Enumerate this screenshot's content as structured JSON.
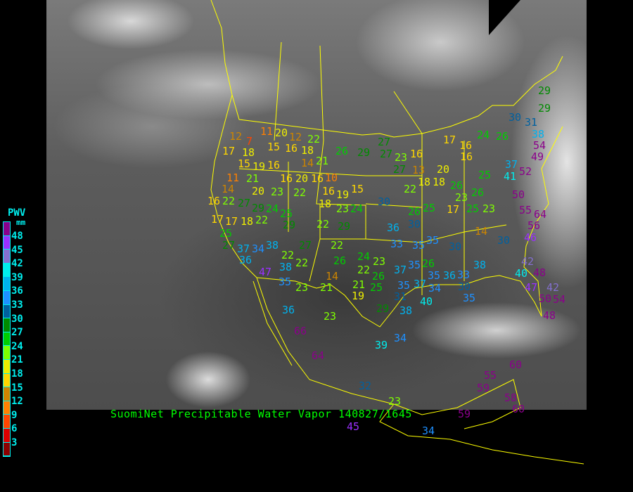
{
  "caption": "SuomiNet Precipitable Water Vapor 140827/1645",
  "legend": {
    "title": "PWV",
    "unit": "mm",
    "ticks": [
      "48",
      "45",
      "42",
      "39",
      "36",
      "33",
      "30",
      "27",
      "24",
      "21",
      "18",
      "15",
      "12",
      "9",
      "6",
      "3"
    ],
    "colors": [
      "#8b008b",
      "#9b30ff",
      "#8470d0",
      "#00eeee",
      "#00b2ee",
      "#1e90ff",
      "#00609f",
      "#008b00",
      "#00cd00",
      "#7fff00",
      "#eeee00",
      "#ffd700",
      "#cd8500",
      "#ff8000",
      "#ff4500",
      "#dd0000",
      "#8b0000"
    ]
  },
  "stations": [
    11,
    20,
    12,
    22,
    12,
    7,
    17,
    18,
    15,
    16,
    18,
    21,
    26,
    29,
    27,
    27,
    23,
    16,
    17,
    16,
    16,
    26,
    24,
    30,
    31,
    29,
    29,
    38,
    54,
    49,
    52,
    37,
    41,
    50,
    55,
    64,
    56,
    46,
    42,
    40,
    48,
    42,
    47,
    50,
    54,
    48,
    15,
    19,
    16,
    16,
    20,
    16,
    14,
    10,
    16,
    11,
    21,
    14,
    16,
    22,
    20,
    23,
    22,
    18,
    19,
    15,
    23,
    24,
    27,
    29,
    24,
    25,
    17,
    17,
    18,
    22,
    29,
    25,
    27,
    22,
    29,
    30,
    36,
    33,
    35,
    35,
    22,
    18,
    18,
    13,
    20,
    27,
    26,
    23,
    26,
    25,
    25,
    23,
    17,
    25,
    26,
    30,
    14,
    30,
    30,
    37,
    36,
    34,
    38,
    22,
    38,
    22,
    27,
    22,
    26,
    24,
    23,
    22,
    47,
    35,
    23,
    21,
    14,
    19,
    21,
    25,
    26,
    37,
    35,
    35,
    37,
    35,
    26,
    36,
    33,
    38,
    30,
    35,
    29,
    38,
    40,
    34,
    31,
    36,
    23,
    66,
    64,
    39,
    34,
    32,
    23,
    45,
    34,
    59,
    59,
    55,
    60,
    58,
    60
  ]
}
